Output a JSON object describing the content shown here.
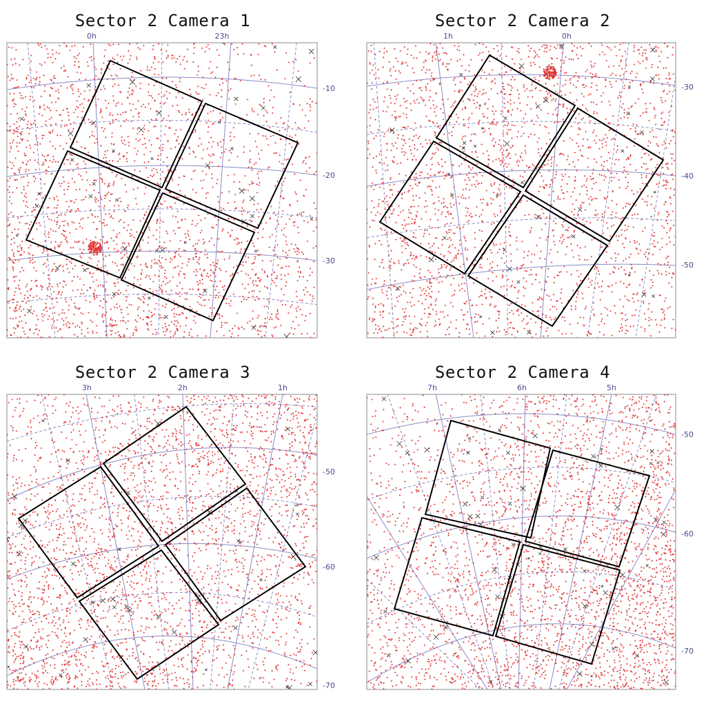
{
  "panels": [
    {
      "title": "Sector  2 Camera 1",
      "ra_labels": [
        "0h",
        "23h"
      ],
      "dec_labels": [
        "-10",
        "-20",
        "-30"
      ]
    },
    {
      "title": "Sector  2 Camera 2",
      "ra_labels": [
        "1h",
        "0h"
      ],
      "dec_labels": [
        "-30",
        "-40",
        "-50"
      ]
    },
    {
      "title": "Sector  2 Camera 3",
      "ra_labels": [
        "3h",
        "2h",
        "1h"
      ],
      "dec_labels": [
        "-50",
        "-60",
        "-70"
      ]
    },
    {
      "title": "Sector  2 Camera 4",
      "ra_labels": [
        "7h",
        "6h",
        "5h"
      ],
      "dec_labels": [
        "-50",
        "-60",
        "-70"
      ]
    }
  ],
  "colors": {
    "star_marker": "#e03030",
    "bright_star_marker": "#333333",
    "grid": "#8a8ac8",
    "ccd_outline": "#000000"
  }
}
